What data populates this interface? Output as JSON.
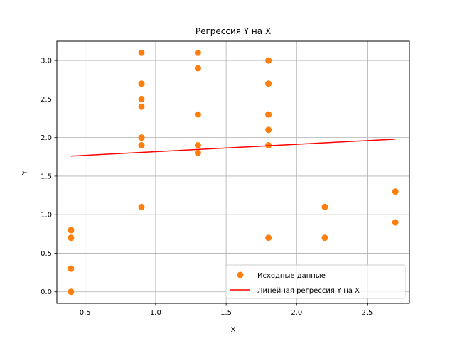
{
  "chart_data": {
    "type": "scatter",
    "title": "Регрессия Y на X",
    "xlabel": "X",
    "ylabel": "Y",
    "xlim": [
      0.3,
      2.8
    ],
    "ylim": [
      -0.15,
      3.25
    ],
    "xticks": [
      0.5,
      1.0,
      1.5,
      2.0,
      2.5
    ],
    "xtick_labels": [
      "0.5",
      "1.0",
      "1.5",
      "2.0",
      "2.5"
    ],
    "yticks": [
      0.0,
      0.5,
      1.0,
      1.5,
      2.0,
      2.5,
      3.0
    ],
    "ytick_labels": [
      "0.0",
      "0.5",
      "1.0",
      "1.5",
      "2.0",
      "2.5",
      "3.0"
    ],
    "grid": true,
    "legend_position": "lower-right",
    "series": [
      {
        "name": "Исходные данные",
        "kind": "scatter",
        "color": "#ff7f0e",
        "x": [
          0.4,
          0.4,
          0.4,
          0.4,
          0.9,
          0.9,
          0.9,
          0.9,
          0.9,
          0.9,
          0.9,
          1.3,
          1.3,
          1.3,
          1.3,
          1.3,
          1.8,
          1.8,
          1.8,
          1.8,
          1.8,
          1.8,
          2.2,
          2.2,
          2.7,
          2.7
        ],
        "y": [
          0.8,
          0.7,
          0.3,
          0.0,
          3.1,
          2.7,
          2.5,
          2.4,
          2.0,
          1.9,
          1.1,
          3.1,
          2.9,
          2.3,
          1.9,
          1.8,
          3.0,
          2.7,
          2.3,
          2.1,
          1.9,
          0.7,
          1.1,
          0.7,
          1.3,
          0.9
        ]
      },
      {
        "name": "Линейная регрессия Y на X",
        "kind": "line",
        "color": "#ff0000",
        "x": [
          0.4,
          2.7
        ],
        "y": [
          1.76,
          1.98
        ]
      }
    ]
  }
}
